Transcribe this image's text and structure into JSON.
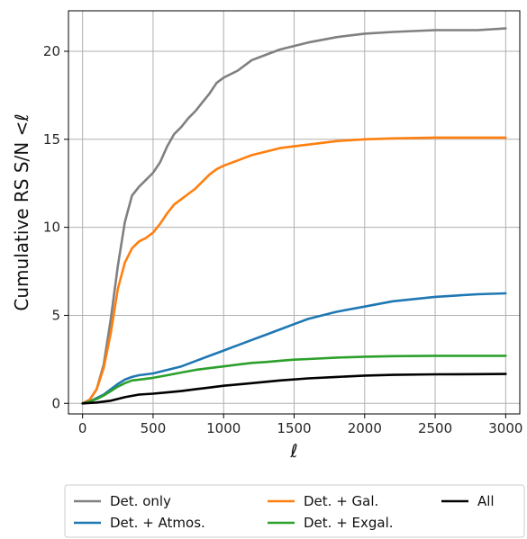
{
  "chart_data": {
    "type": "line",
    "title": "",
    "xlabel": "ℓ",
    "ylabel": "Cumulative RS S/N  <ℓ",
    "xlim": [
      -100,
      3100
    ],
    "ylim": [
      -0.6,
      22.3
    ],
    "xticks": [
      0,
      500,
      1000,
      1500,
      2000,
      2500,
      3000
    ],
    "xtick_labels": [
      "0",
      "500",
      "1000",
      "1500",
      "2000",
      "2500",
      "3000"
    ],
    "yticks": [
      0,
      5,
      10,
      15,
      20
    ],
    "ytick_labels": [
      "0",
      "5",
      "10",
      "15",
      "20"
    ],
    "grid": true,
    "legend_position": "below the plot, 3 columns",
    "series": [
      {
        "name": "Det. only",
        "color": "#808080",
        "x": [
          0,
          50,
          100,
          150,
          200,
          250,
          300,
          350,
          400,
          450,
          500,
          550,
          600,
          650,
          700,
          750,
          800,
          850,
          900,
          950,
          1000,
          1100,
          1200,
          1300,
          1400,
          1500,
          1600,
          1800,
          2000,
          2200,
          2500,
          2800,
          3000
        ],
        "y": [
          0,
          0.2,
          0.8,
          2.2,
          4.8,
          7.8,
          10.3,
          11.8,
          12.3,
          12.7,
          13.1,
          13.7,
          14.6,
          15.3,
          15.7,
          16.2,
          16.6,
          17.1,
          17.6,
          18.2,
          18.5,
          18.9,
          19.5,
          19.8,
          20.1,
          20.3,
          20.5,
          20.8,
          21.0,
          21.1,
          21.2,
          21.2,
          21.3
        ]
      },
      {
        "name": "Det. + Gal.",
        "color": "#ff7f0e",
        "x": [
          0,
          50,
          100,
          150,
          200,
          250,
          300,
          350,
          400,
          450,
          500,
          550,
          600,
          650,
          700,
          750,
          800,
          850,
          900,
          950,
          1000,
          1100,
          1200,
          1300,
          1400,
          1500,
          1600,
          1800,
          2000,
          2200,
          2500,
          2800,
          3000
        ],
        "y": [
          0,
          0.2,
          0.8,
          2.0,
          4.0,
          6.5,
          8.0,
          8.8,
          9.2,
          9.4,
          9.7,
          10.2,
          10.8,
          11.3,
          11.6,
          11.9,
          12.2,
          12.6,
          13.0,
          13.3,
          13.5,
          13.8,
          14.1,
          14.3,
          14.5,
          14.6,
          14.7,
          14.9,
          15.0,
          15.05,
          15.1,
          15.1,
          15.1
        ]
      },
      {
        "name": "All",
        "color": "#000000",
        "x": [
          0,
          100,
          200,
          300,
          400,
          500,
          600,
          700,
          800,
          900,
          1000,
          1200,
          1400,
          1600,
          1800,
          2000,
          2200,
          2500,
          2800,
          3000
        ],
        "y": [
          0,
          0.05,
          0.15,
          0.35,
          0.5,
          0.55,
          0.62,
          0.7,
          0.8,
          0.9,
          1.0,
          1.15,
          1.3,
          1.42,
          1.5,
          1.58,
          1.62,
          1.65,
          1.66,
          1.67
        ]
      },
      {
        "name": "Det. + Atmos.",
        "color": "#1f77b4",
        "x": [
          0,
          50,
          100,
          150,
          200,
          250,
          300,
          350,
          400,
          450,
          500,
          600,
          700,
          800,
          900,
          1000,
          1100,
          1200,
          1300,
          1400,
          1500,
          1600,
          1800,
          2000,
          2200,
          2500,
          2800,
          3000
        ],
        "y": [
          0,
          0.1,
          0.3,
          0.5,
          0.8,
          1.1,
          1.35,
          1.5,
          1.6,
          1.65,
          1.7,
          1.9,
          2.1,
          2.4,
          2.7,
          3.0,
          3.3,
          3.6,
          3.9,
          4.2,
          4.5,
          4.8,
          5.2,
          5.5,
          5.8,
          6.05,
          6.2,
          6.25
        ]
      },
      {
        "name": "Det. + Exgal.",
        "color": "#2ca02c",
        "x": [
          0,
          50,
          100,
          150,
          200,
          250,
          300,
          350,
          400,
          450,
          500,
          600,
          700,
          800,
          900,
          1000,
          1100,
          1200,
          1300,
          1400,
          1500,
          1600,
          1800,
          2000,
          2200,
          2500,
          2800,
          3000
        ],
        "y": [
          0,
          0.1,
          0.25,
          0.45,
          0.7,
          0.95,
          1.15,
          1.3,
          1.35,
          1.4,
          1.45,
          1.6,
          1.75,
          1.9,
          2.0,
          2.1,
          2.2,
          2.3,
          2.35,
          2.42,
          2.48,
          2.52,
          2.6,
          2.65,
          2.68,
          2.7,
          2.7,
          2.7
        ]
      }
    ]
  }
}
